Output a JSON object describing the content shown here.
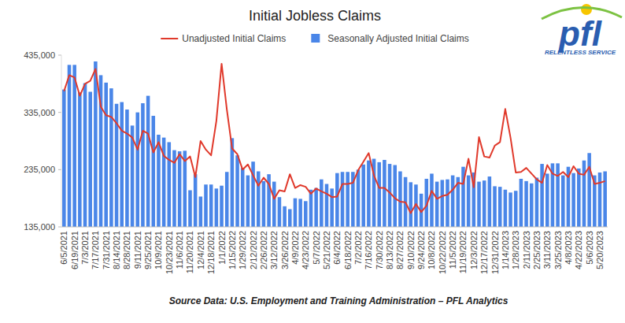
{
  "chart_data": {
    "type": "bar",
    "title": "Initial Jobless Claims",
    "source": "Source Data: U.S. Employment and Training Administration – PFL Analytics",
    "logo": "pfl",
    "logo_tagline": "RELENTLESS SERVICE",
    "legend": "top",
    "grid": false,
    "ylim": [
      135000,
      435000
    ],
    "yticks": [
      {
        "value": 135000,
        "label": "135,000"
      },
      {
        "value": 235000,
        "label": "235,000"
      },
      {
        "value": 335000,
        "label": "335,000"
      },
      {
        "value": 435000,
        "label": "435,000"
      }
    ],
    "categories": [
      "6/5/2021",
      null,
      "6/19/2021",
      null,
      "7/3/2021",
      null,
      "7/17/2021",
      null,
      "7/31/2021",
      null,
      "8/14/2021",
      null,
      "8/28/2021",
      null,
      "9/11/2021",
      null,
      "9/25/2021",
      null,
      "10/9/2021",
      null,
      "10/23/2021",
      null,
      "11/6/2021",
      null,
      "11/20/2021",
      null,
      "12/4/2021",
      null,
      "12/18/2021",
      null,
      "1/1/2022",
      null,
      "1/15/2022",
      null,
      "1/29/2022",
      null,
      "2/12/2022",
      null,
      "2/26/2022",
      null,
      "3/12/2022",
      null,
      "3/26/2022",
      null,
      "4/9/2022",
      null,
      "4/23/2022",
      null,
      "5/7/2022",
      null,
      "5/21/2022",
      null,
      "6/4/2022",
      null,
      "6/18/2022",
      null,
      "7/2/2022",
      null,
      "7/16/2022",
      null,
      "7/30/2022",
      null,
      "8/13/2022",
      null,
      "8/27/2022",
      null,
      "9/10/2022",
      null,
      "9/24/2022",
      null,
      "10/8/2022",
      null,
      "10/22/2022",
      null,
      "11/5/2022",
      null,
      "11/19/2022",
      null,
      "12/3/2022",
      null,
      "12/17/2022",
      null,
      "12/31/2022",
      null,
      "1/14/2023",
      null,
      "1/28/2023",
      null,
      "2/11/2023",
      null,
      "2/25/2023",
      null,
      "3/11/2023",
      null,
      "3/25/2023",
      null,
      "4/8/2023",
      null,
      "4/22/2023",
      null,
      "5/6/2023",
      null,
      "5/20/2023",
      null
    ],
    "series": [
      {
        "name": "Unadjusted Initial Claims",
        "type": "line",
        "color": "#e0392b",
        "values": [
          372000,
          400000,
          396000,
          364000,
          385000,
          390000,
          411000,
          345000,
          330000,
          327000,
          316000,
          303000,
          298000,
          291000,
          270000,
          303000,
          298000,
          265000,
          283000,
          259000,
          252000,
          247000,
          262000,
          250000,
          258000,
          222000,
          285000,
          270000,
          260000,
          320000,
          420000,
          340000,
          272000,
          262000,
          235000,
          244000,
          225000,
          207000,
          221000,
          210000,
          184000,
          199000,
          197000,
          227000,
          203000,
          208000,
          205000,
          193000,
          202000,
          197000,
          193000,
          187000,
          188000,
          210000,
          210000,
          212000,
          234000,
          249000,
          264000,
          225000,
          203000,
          203000,
          195000,
          185000,
          179000,
          178000,
          159000,
          175000,
          161000,
          172000,
          198000,
          184000,
          189000,
          191000,
          200000,
          212000,
          210000,
          254000,
          204000,
          292000,
          258000,
          256000,
          277000,
          283000,
          341000,
          291000,
          230000,
          231000,
          238000,
          228000,
          218000,
          212000,
          243000,
          228000,
          224000,
          231000,
          222000,
          241000,
          228000,
          226000,
          240000,
          210000,
          212000,
          215000
        ]
      },
      {
        "name": "Seasonally Adjusted Initial Claims",
        "type": "bar",
        "color": "#4a86e8",
        "values": [
          375000,
          418000,
          418000,
          370000,
          386000,
          371000,
          424000,
          400000,
          387000,
          377000,
          350000,
          353000,
          340000,
          312000,
          335000,
          351000,
          364000,
          329000,
          296000,
          291000,
          283000,
          269000,
          267000,
          268000,
          199000,
          227000,
          188000,
          209000,
          209000,
          202000,
          207000,
          231000,
          290000,
          260000,
          238000,
          225000,
          249000,
          232000,
          215000,
          227000,
          214000,
          187000,
          171000,
          166000,
          185000,
          184000,
          180000,
          200000,
          203000,
          218000,
          210000,
          202000,
          229000,
          231000,
          231000,
          231000,
          235000,
          244000,
          251000,
          254000,
          248000,
          252000,
          245000,
          243000,
          232000,
          222000,
          213000,
          209000,
          193000,
          219000,
          228000,
          214000,
          217000,
          218000,
          225000,
          222000,
          240000,
          225000,
          230000,
          214000,
          216000,
          223000,
          206000,
          205000,
          200000,
          195000,
          198000,
          219000,
          215000,
          211000,
          221000,
          245000,
          228000,
          246000,
          246000,
          225000,
          240000,
          229000,
          237000,
          251000,
          264000,
          225000,
          230000,
          232000
        ]
      }
    ]
  }
}
